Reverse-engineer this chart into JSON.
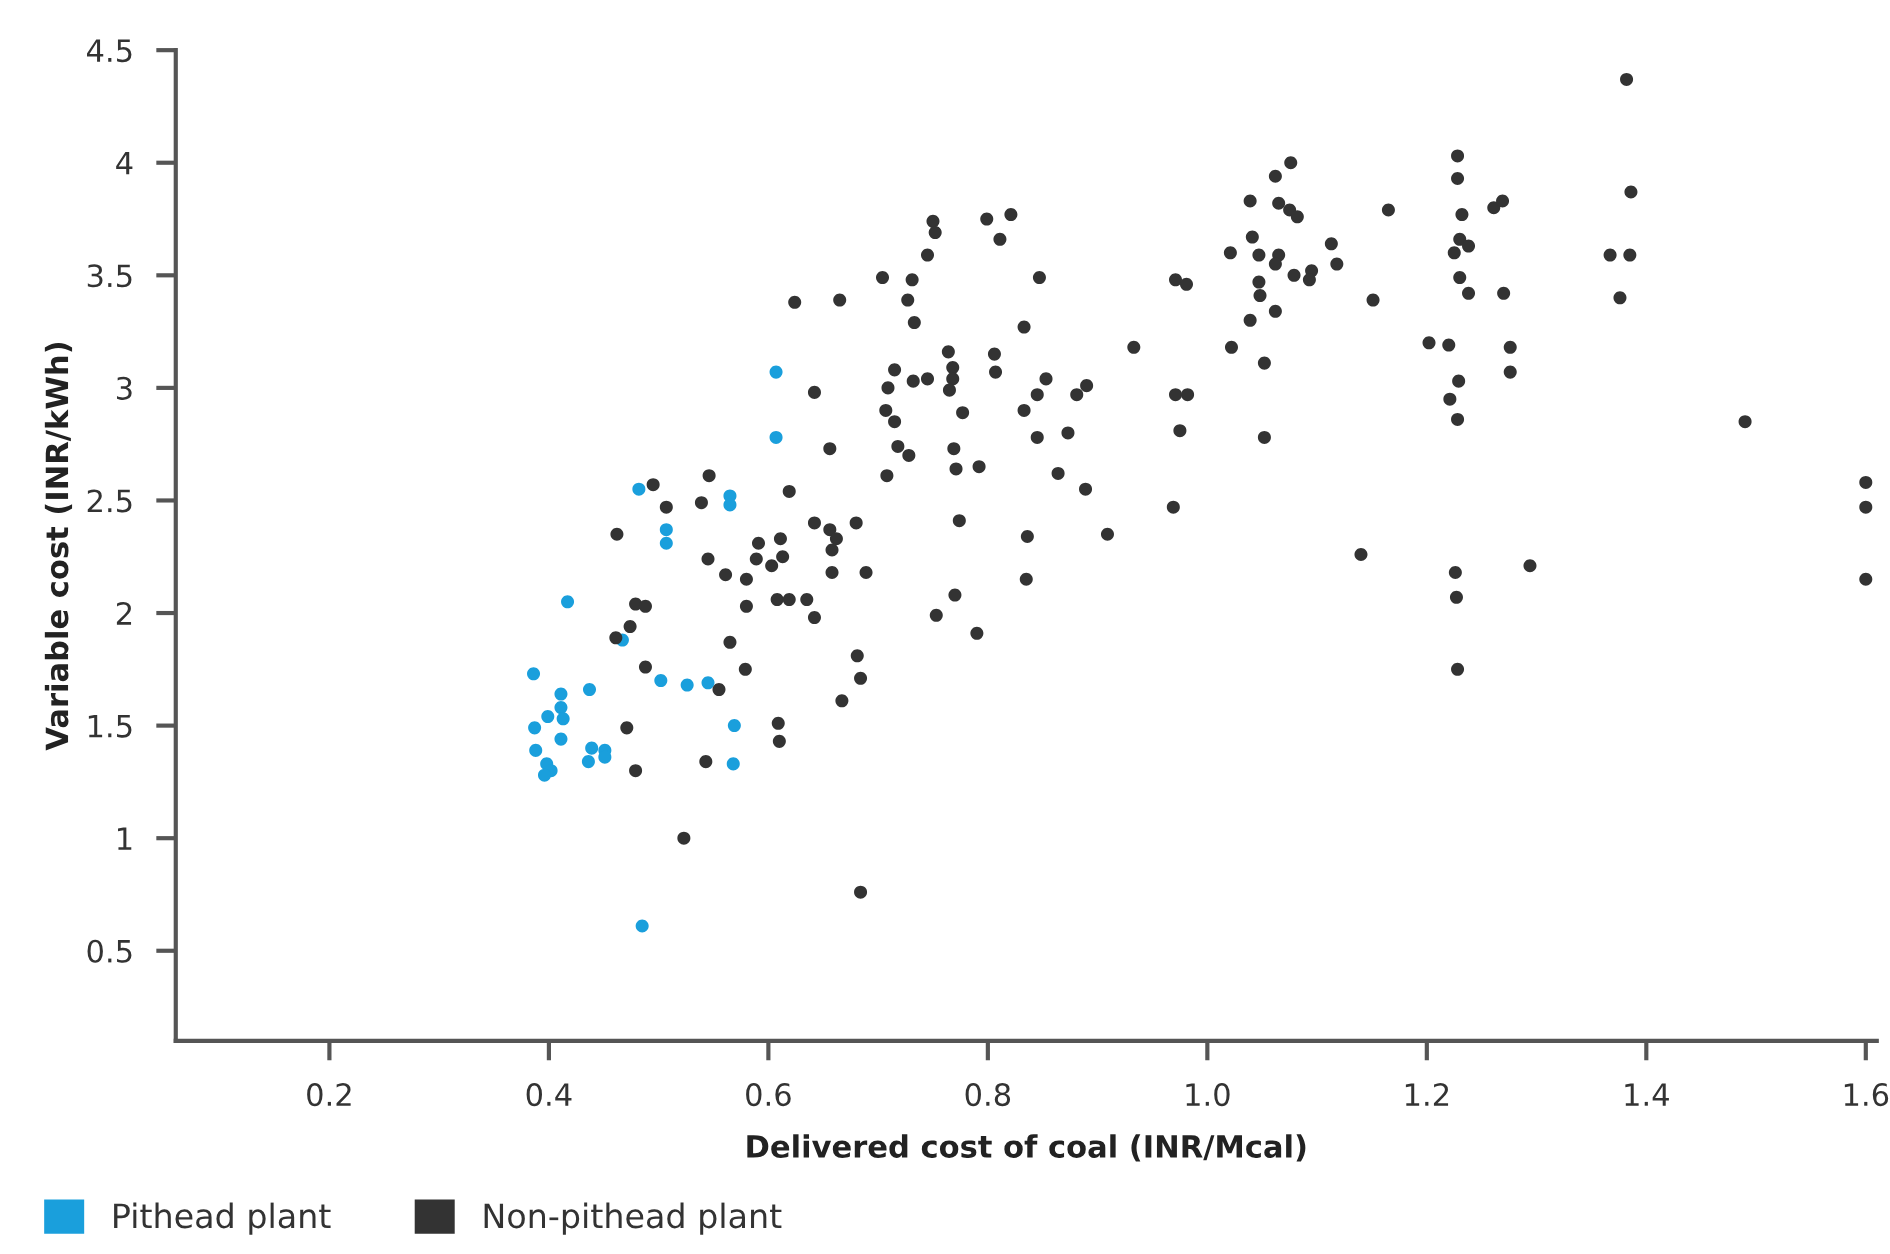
{
  "chart_data": {
    "type": "scatter",
    "xlabel": "Delivered cost of coal (INR/Mcal)",
    "ylabel": "Variable cost (INR/kWh)",
    "xlim": [
      0.06,
      1.61
    ],
    "ylim": [
      0.1,
      4.5
    ],
    "xticks": [
      {
        "value": 0.2,
        "label": "0.2"
      },
      {
        "value": 0.4,
        "label": "0.4"
      },
      {
        "value": 0.6,
        "label": "0.6"
      },
      {
        "value": 0.8,
        "label": "0.8"
      },
      {
        "value": 1.0,
        "label": "1.0"
      },
      {
        "value": 1.2,
        "label": "1.2"
      },
      {
        "value": 1.4,
        "label": "1.4"
      },
      {
        "value": 1.6,
        "label": "1.6"
      }
    ],
    "yticks": [
      0.5,
      1,
      1.5,
      2,
      2.5,
      3,
      3.5,
      4,
      4.5
    ],
    "grid": false,
    "legend": "bottom left",
    "marker": "circle",
    "series": [
      {
        "name": "Pithead plant",
        "color": "#1a9fdc",
        "x": [
          0.482,
          0.565,
          0.565,
          0.507,
          0.507,
          0.417,
          0.467,
          0.386,
          0.437,
          0.502,
          0.526,
          0.545,
          0.411,
          0.399,
          0.411,
          0.413,
          0.387,
          0.411,
          0.388,
          0.439,
          0.451,
          0.451,
          0.436,
          0.569,
          0.568,
          0.398,
          0.402,
          0.396,
          0.485,
          0.607,
          0.607
        ],
        "values": [
          2.55,
          2.52,
          2.48,
          2.37,
          2.31,
          2.05,
          1.88,
          1.73,
          1.66,
          1.7,
          1.68,
          1.69,
          1.64,
          1.54,
          1.58,
          1.53,
          1.49,
          1.44,
          1.39,
          1.4,
          1.39,
          1.36,
          1.34,
          1.5,
          1.33,
          1.33,
          1.3,
          1.28,
          0.61,
          3.07,
          2.78
        ]
      },
      {
        "name": "Non-pithead plant",
        "color": "#333333",
        "x": [
          0.495,
          0.546,
          0.507,
          0.539,
          0.619,
          0.462,
          0.642,
          0.656,
          0.662,
          0.658,
          0.68,
          0.708,
          0.591,
          0.611,
          0.589,
          0.613,
          0.603,
          0.545,
          0.561,
          0.58,
          0.658,
          0.689,
          0.479,
          0.488,
          0.58,
          0.608,
          0.619,
          0.635,
          0.642,
          0.474,
          0.461,
          0.77,
          0.753,
          0.565,
          0.488,
          0.579,
          0.555,
          0.681,
          0.684,
          0.667,
          0.609,
          0.61,
          0.471,
          0.479,
          0.543,
          0.523,
          0.684,
          0.771,
          0.774,
          0.75,
          0.752,
          0.745,
          0.799,
          0.821,
          0.811,
          0.704,
          0.731,
          0.727,
          0.733,
          0.847,
          0.833,
          0.764,
          0.715,
          0.709,
          0.732,
          0.745,
          0.768,
          0.768,
          0.765,
          0.806,
          0.807,
          0.707,
          0.715,
          0.718,
          0.728,
          0.777,
          0.769,
          0.792,
          0.833,
          0.845,
          0.853,
          0.881,
          0.89,
          0.845,
          0.873,
          0.864,
          0.889,
          0.836,
          0.835,
          0.909,
          0.79,
          0.933,
          0.969,
          0.971,
          0.981,
          0.971,
          0.982,
          0.975,
          1.14,
          1.021,
          1.041,
          1.039,
          1.065,
          1.075,
          1.082,
          1.047,
          1.065,
          1.062,
          1.047,
          1.048,
          1.079,
          1.095,
          1.093,
          1.113,
          1.118,
          1.039,
          1.062,
          1.022,
          1.052,
          1.052,
          1.151,
          1.165,
          1.202,
          1.076,
          1.062,
          0.624,
          0.665,
          0.642,
          0.656,
          1.382,
          1.228,
          1.228,
          1.232,
          1.261,
          1.269,
          1.386,
          1.23,
          1.225,
          1.238,
          1.23,
          1.238,
          1.27,
          1.367,
          1.385,
          1.376,
          1.22,
          1.276,
          1.276,
          1.229,
          1.221,
          1.228,
          1.49,
          1.6,
          1.6,
          1.6,
          1.226,
          1.227,
          1.294,
          1.228
        ],
        "values": [
          2.57,
          2.61,
          2.47,
          2.49,
          2.54,
          2.35,
          2.4,
          2.37,
          2.33,
          2.28,
          2.4,
          2.61,
          2.31,
          2.33,
          2.24,
          2.25,
          2.21,
          2.24,
          2.17,
          2.15,
          2.18,
          2.18,
          2.04,
          2.03,
          2.03,
          2.06,
          2.06,
          2.06,
          1.98,
          1.94,
          1.89,
          2.08,
          1.99,
          1.87,
          1.76,
          1.75,
          1.66,
          1.81,
          1.71,
          1.61,
          1.51,
          1.43,
          1.49,
          1.3,
          1.34,
          1.0,
          0.76,
          2.64,
          2.41,
          3.74,
          3.69,
          3.59,
          3.75,
          3.77,
          3.66,
          3.49,
          3.48,
          3.39,
          3.29,
          3.49,
          3.27,
          3.16,
          3.08,
          3.0,
          3.03,
          3.04,
          3.09,
          3.04,
          2.99,
          3.15,
          3.07,
          2.9,
          2.85,
          2.74,
          2.7,
          2.89,
          2.73,
          2.65,
          2.9,
          2.97,
          3.04,
          2.97,
          3.01,
          2.78,
          2.8,
          2.62,
          2.55,
          2.34,
          2.15,
          2.35,
          1.91,
          3.18,
          2.47,
          3.48,
          3.46,
          2.97,
          2.97,
          2.81,
          2.26,
          3.6,
          3.67,
          3.83,
          3.82,
          3.79,
          3.76,
          3.59,
          3.59,
          3.55,
          3.47,
          3.41,
          3.5,
          3.52,
          3.48,
          3.64,
          3.55,
          3.3,
          3.34,
          3.18,
          3.11,
          2.78,
          3.39,
          3.79,
          3.2,
          4.0,
          3.94,
          3.38,
          3.39,
          2.98,
          2.73,
          4.37,
          4.03,
          3.93,
          3.77,
          3.8,
          3.83,
          3.87,
          3.66,
          3.6,
          3.63,
          3.49,
          3.42,
          3.42,
          3.59,
          3.59,
          3.4,
          3.19,
          3.18,
          3.07,
          3.03,
          2.95,
          2.86,
          2.85,
          2.58,
          2.47,
          2.15,
          2.18,
          2.07,
          2.21,
          1.75
        ]
      }
    ]
  }
}
